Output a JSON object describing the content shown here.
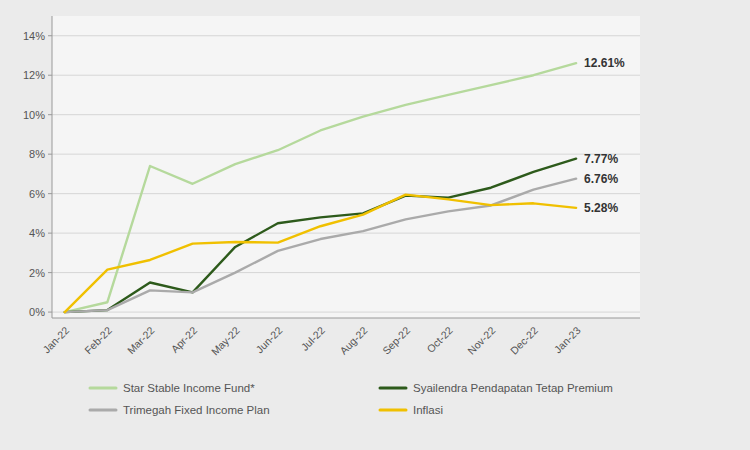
{
  "chart_data": {
    "type": "line",
    "categories": [
      "Jan-22",
      "Feb-22",
      "Mar-22",
      "Apr-22",
      "May-22",
      "Jun-22",
      "Jul-22",
      "Aug-22",
      "Sep-22",
      "Oct-22",
      "Nov-22",
      "Dec-22",
      "Jan-23"
    ],
    "series": [
      {
        "name": "Star Stable Income Fund*",
        "color": "#b5d99c",
        "values": [
          0.0,
          0.5,
          7.4,
          6.5,
          7.5,
          8.2,
          9.2,
          9.9,
          10.5,
          11.0,
          11.5,
          12.0,
          12.61
        ],
        "value_labels": [
          null,
          null,
          null,
          null,
          null,
          null,
          null,
          null,
          null,
          null,
          null,
          null,
          "12.61%"
        ]
      },
      {
        "name": "Syailendra Pendapatan Tetap Premium",
        "color": "#2d5a1b",
        "values": [
          0.0,
          0.1,
          1.5,
          1.0,
          3.3,
          4.5,
          4.8,
          5.0,
          5.9,
          5.8,
          6.3,
          7.1,
          7.77
        ],
        "value_labels": [
          null,
          null,
          null,
          null,
          null,
          null,
          null,
          null,
          null,
          null,
          null,
          null,
          "7.77%"
        ]
      },
      {
        "name": "Trimegah Fixed Income Plan",
        "color": "#aaaaaa",
        "values": [
          0.0,
          0.1,
          1.1,
          1.0,
          2.0,
          3.1,
          3.7,
          4.1,
          4.7,
          5.1,
          5.4,
          6.2,
          6.76
        ],
        "value_labels": [
          null,
          null,
          null,
          null,
          null,
          null,
          null,
          null,
          null,
          null,
          null,
          null,
          "6.76%"
        ]
      },
      {
        "name": "Inflasi",
        "color": "#f0c000",
        "values": [
          0.0,
          2.15,
          2.64,
          3.47,
          3.55,
          3.52,
          4.35,
          4.94,
          5.95,
          5.71,
          5.42,
          5.51,
          5.28
        ],
        "value_labels": [
          null,
          null,
          null,
          null,
          null,
          null,
          null,
          null,
          null,
          null,
          null,
          null,
          "5.28%"
        ]
      }
    ],
    "ylim": [
      -0.3,
      15.0
    ],
    "yticks": [
      {
        "value": 0,
        "label": "0%"
      },
      {
        "value": 2,
        "label": "2%"
      },
      {
        "value": 4,
        "label": "4%"
      },
      {
        "value": 6,
        "label": "6%"
      },
      {
        "value": 8,
        "label": "8%"
      },
      {
        "value": 10,
        "label": "10%"
      },
      {
        "value": 12,
        "label": "12%"
      },
      {
        "value": 14,
        "label": "14%"
      }
    ],
    "grid": true,
    "data_labels": true,
    "legend": "bottom"
  }
}
